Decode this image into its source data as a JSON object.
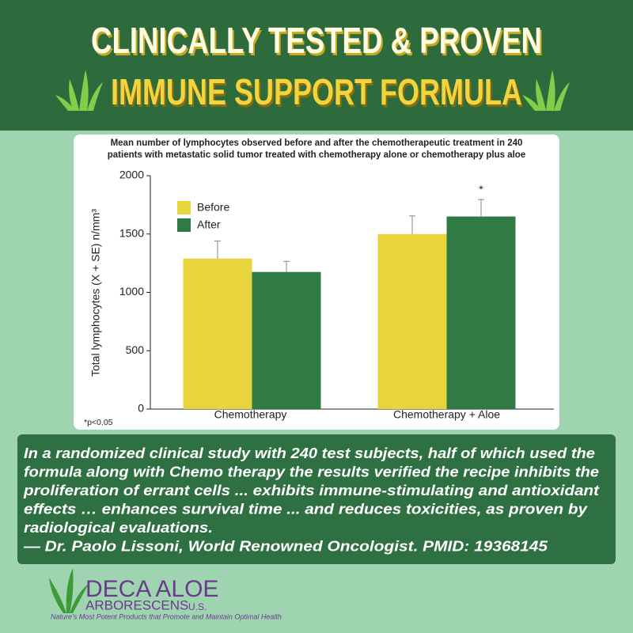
{
  "header": {
    "line1": "CLINICALLY TESTED & PROVEN",
    "line2": "IMMUNE SUPPORT FORMULA"
  },
  "chart_data": {
    "type": "bar",
    "title": [
      "Mean number of lymphocytes observed before and after the chemotherapeutic treatment in 240",
      "patients with metastatic solid tumor treated with chemotherapy alone or chemotherapy plus aloe"
    ],
    "y_label": "Total lymphocytes (X + SE) n/mm³",
    "categories": [
      "Chemotherapy",
      "Chemotherapy + Aloe"
    ],
    "series": [
      {
        "name": "Before",
        "color": "#e8d43c",
        "values": [
          1290,
          1500
        ],
        "errors": [
          150,
          155
        ]
      },
      {
        "name": "After",
        "color": "#2f7a45",
        "values": [
          1175,
          1650
        ],
        "errors": [
          90,
          145
        ]
      }
    ],
    "ylim": [
      0,
      2000
    ],
    "yticks": [
      0,
      500,
      1000,
      1500,
      2000
    ],
    "grid": false,
    "legend": "top-left",
    "annotations": [
      "*"
    ],
    "footnote": "*p<0.05"
  },
  "quote": {
    "lines": [
      " In a randomized clinical study with 240 test subjects, half of which used the",
      "formula along with Chemo therapy the results verified the recipe inhibits the",
      "proliferation of errant cells ... exhibits immune-stimulating and antioxidant",
      "effects … enhances survival time ... and reduces toxicities, as proven by",
      "radiological evaluations.",
      "— Dr. Paolo Lissoni, World Renowned Oncologist. PMID: 19368145"
    ]
  },
  "logo": {
    "name": "DECA ALOE",
    "sub": "ARBORESCENS",
    "country": "U.S.",
    "tagline": "Nature's Most Potent Products that Promote and Maintain Optimal Health"
  }
}
